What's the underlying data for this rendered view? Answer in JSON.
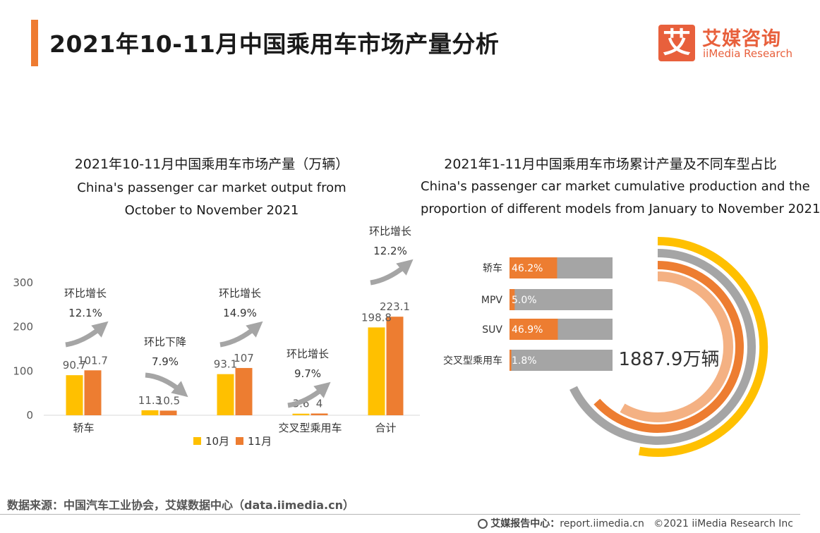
{
  "header": {
    "title": "2021年10-11月中国乘用车市场产量分析",
    "logo_mark": "艾",
    "logo_cn": "艾媒咨询",
    "logo_en": "iiMedia Research"
  },
  "colors": {
    "accent": "#ee7b31",
    "oct": "#ffc000",
    "nov": "#ed7d31",
    "gray": "#a5a5a5",
    "light_orange": "#f4b183",
    "brand": "#e8603c"
  },
  "chart_left": {
    "title_cn": "2021年10-11月中国乘用车市场产量（万辆）",
    "title_en_line1": "China's passenger car market output from",
    "title_en_line2": "October to November 2021"
  },
  "chart_right": {
    "title_cn": "2021年1-11月中国乘用车市场累计产量及不同车型占比",
    "title_en_line1": "China's passenger car market cumulative production and the",
    "title_en_line2": "proportion of different models from January to November 2021"
  },
  "chart_data": [
    {
      "type": "bar",
      "categories": [
        "轿车",
        "",
        "",
        "交叉型乘用车",
        "合计"
      ],
      "series": [
        {
          "name": "10月",
          "values": [
            90.7,
            11.3,
            93.1,
            3.6,
            198.8
          ]
        },
        {
          "name": "11月",
          "values": [
            101.7,
            10.5,
            107.0,
            4.0,
            223.1
          ]
        }
      ],
      "ylim": [
        0,
        300
      ],
      "yticks": [
        0,
        100,
        200,
        300
      ],
      "annotations": [
        {
          "label": "环比增长",
          "value": "12.1%",
          "direction": "up"
        },
        {
          "label": "环比下降",
          "value": "7.9%",
          "direction": "down"
        },
        {
          "label": "环比增长",
          "value": "14.9%",
          "direction": "up"
        },
        {
          "label": "环比增长",
          "value": "9.7%",
          "direction": "up"
        },
        {
          "label": "环比增长",
          "value": "12.2%",
          "direction": "up"
        }
      ],
      "legend": [
        "10月",
        "11月"
      ]
    },
    {
      "type": "bar",
      "orientation": "horizontal-percent",
      "categories": [
        "轿车",
        "MPV",
        "SUV",
        "交叉型乘用车"
      ],
      "values": [
        46.2,
        5.0,
        46.9,
        1.8
      ],
      "value_labels": [
        "46.2%",
        "5.0%",
        "46.9%",
        "1.8%"
      ],
      "total_label": "1887.9万辆"
    }
  ],
  "footer": {
    "source": "数据来源：中国汽车工业协会，艾媒数据中心（data.iimedia.cn）",
    "report_label": "艾媒报告中心：",
    "report_url": "report.iimedia.cn",
    "copyright": "©2021  iiMedia Research  Inc"
  }
}
